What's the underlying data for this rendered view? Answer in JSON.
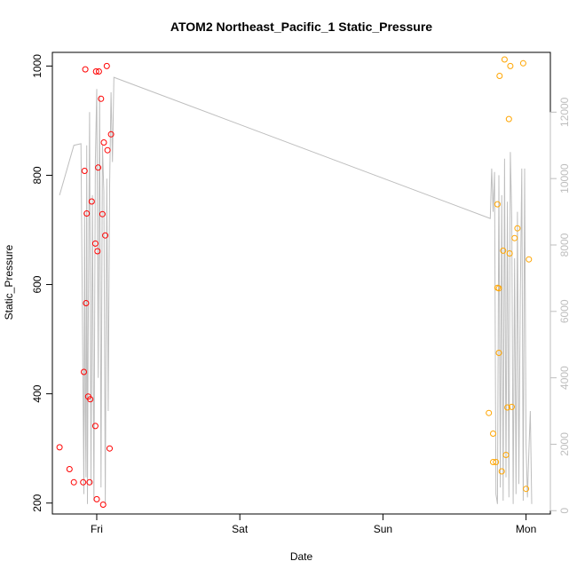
{
  "chart_data": {
    "type": "scatter",
    "title": "ATOM2 Northeast_Pacific_1 Static_Pressure",
    "xlabel": "Date",
    "ylabel": "Static_Pressure",
    "ylabel_right": "",
    "grid": false,
    "legend": "none",
    "x_range_days": [
      -0.31,
      3.17
    ],
    "x_ticks": [
      {
        "label": "Fri",
        "value": 0
      },
      {
        "label": "Sat",
        "value": 1
      },
      {
        "label": "Sun",
        "value": 2
      },
      {
        "label": "Mon",
        "value": 3
      }
    ],
    "ylim": [
      180,
      1025
    ],
    "y_ticks": [
      200,
      400,
      600,
      800,
      1000
    ],
    "y_right_lim": [
      -100,
      13800
    ],
    "y_right_ticks": [
      0,
      2000,
      4000,
      6000,
      8000,
      10000,
      12000
    ],
    "colors": {
      "series_a": "#ff0000",
      "series_b": "#ffa500",
      "line": "#bebebe",
      "axis": "#000000",
      "right_axis": "#bebebe"
    },
    "series": [
      {
        "color_key": "series_a",
        "x": [
          -0.26,
          -0.19,
          -0.16,
          -0.095,
          -0.09,
          -0.085,
          -0.08,
          -0.075,
          -0.07,
          -0.06,
          -0.05,
          -0.045,
          -0.035,
          -0.01,
          -0.01,
          -0.005,
          0.0,
          0.005,
          0.01,
          0.015,
          0.03,
          0.04,
          0.045,
          0.05,
          0.06,
          0.075,
          0.07,
          0.09,
          0.1
        ],
        "y": [
          302,
          262,
          238,
          238,
          440,
          808,
          994,
          566,
          730,
          395,
          238,
          390,
          752,
          675,
          341,
          990,
          207,
          661,
          814,
          990,
          940,
          729,
          197,
          860,
          690,
          846,
          1000,
          300,
          875
        ]
      },
      {
        "color_key": "series_b",
        "x": [
          2.74,
          2.77,
          2.77,
          2.79,
          2.8,
          2.8,
          2.81,
          2.81,
          2.815,
          2.83,
          2.84,
          2.85,
          2.86,
          2.87,
          2.88,
          2.885,
          2.89,
          2.9,
          2.92,
          2.94,
          2.98,
          3.0,
          3.02
        ],
        "y": [
          365,
          327,
          275,
          275,
          747,
          594,
          475,
          593,
          982,
          258,
          662,
          1012,
          288,
          375,
          903,
          657,
          1000,
          376,
          685,
          703,
          1005,
          226,
          646
        ]
      }
    ],
    "line_series": {
      "color_key": "line",
      "axis": "right",
      "x": [
        -0.26,
        -0.16,
        -0.11,
        -0.09,
        -0.085,
        -0.08,
        -0.075,
        -0.07,
        -0.065,
        -0.06,
        -0.05,
        -0.04,
        -0.03,
        -0.02,
        -0.01,
        0.0,
        0.01,
        0.02,
        0.03,
        0.04,
        0.05,
        0.06,
        0.07,
        0.08,
        0.09,
        0.1,
        0.11,
        0.12,
        2.75,
        2.76,
        2.77,
        2.78,
        2.79,
        2.8,
        2.81,
        2.82,
        2.83,
        2.84,
        2.85,
        2.86,
        2.87,
        2.88,
        2.89,
        2.9,
        2.91,
        2.92,
        2.93,
        2.94,
        2.95,
        2.96,
        2.97,
        2.98,
        2.99,
        3.0,
        3.01,
        3.02,
        3.03,
        3.04
      ],
      "y": [
        9500,
        11000,
        11050,
        500,
        9000,
        3000,
        1000,
        11000,
        200,
        5000,
        12000,
        800,
        9500,
        300,
        10500,
        12700,
        4000,
        12500,
        700,
        11000,
        9600,
        200,
        10000,
        3000,
        9800,
        12600,
        10500,
        13050,
        8800,
        10300,
        9000,
        10200,
        500,
        200,
        10100,
        700,
        9500,
        300,
        10600,
        1000,
        9300,
        400,
        10800,
        8800,
        200,
        7600,
        500,
        9000,
        800,
        6400,
        10300,
        300,
        10300,
        2000,
        400,
        1800,
        3000,
        200
      ]
    }
  }
}
